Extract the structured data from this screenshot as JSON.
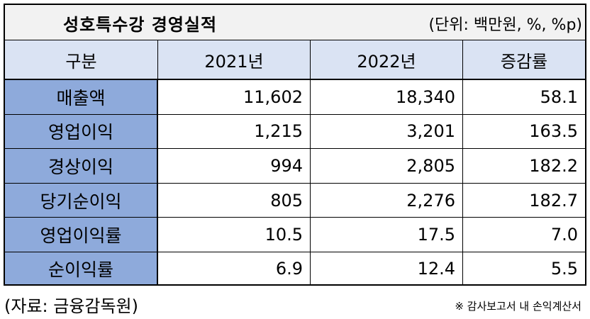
{
  "title": "성호특수강 경영실적",
  "unit": "(단위: 백만원, %, %p)",
  "headers": [
    "구분",
    "2021년",
    "2022년",
    "증감률"
  ],
  "rows": [
    {
      "label": "매출액",
      "y2021": "11,602",
      "y2022": "18,340",
      "change": "58.1"
    },
    {
      "label": "영업이익",
      "y2021": "1,215",
      "y2022": "3,201",
      "change": "163.5"
    },
    {
      "label": "경상이익",
      "y2021": "994",
      "y2022": "2,805",
      "change": "182.2"
    },
    {
      "label": "당기순이익",
      "y2021": "805",
      "y2022": "2,276",
      "change": "182.7"
    },
    {
      "label": "영업이익률",
      "y2021": "10.5",
      "y2022": "17.5",
      "change": "7.0"
    },
    {
      "label": "순이익률",
      "y2021": "6.9",
      "y2022": "12.4",
      "change": "5.5"
    }
  ],
  "source": "(자료: 금융감독원)",
  "note": "※ 감사보고서 내 손익계산서",
  "colors": {
    "header_bg": "#dae3f3",
    "label_bg": "#8eaadb",
    "title_bg": "#f2f2f2"
  }
}
